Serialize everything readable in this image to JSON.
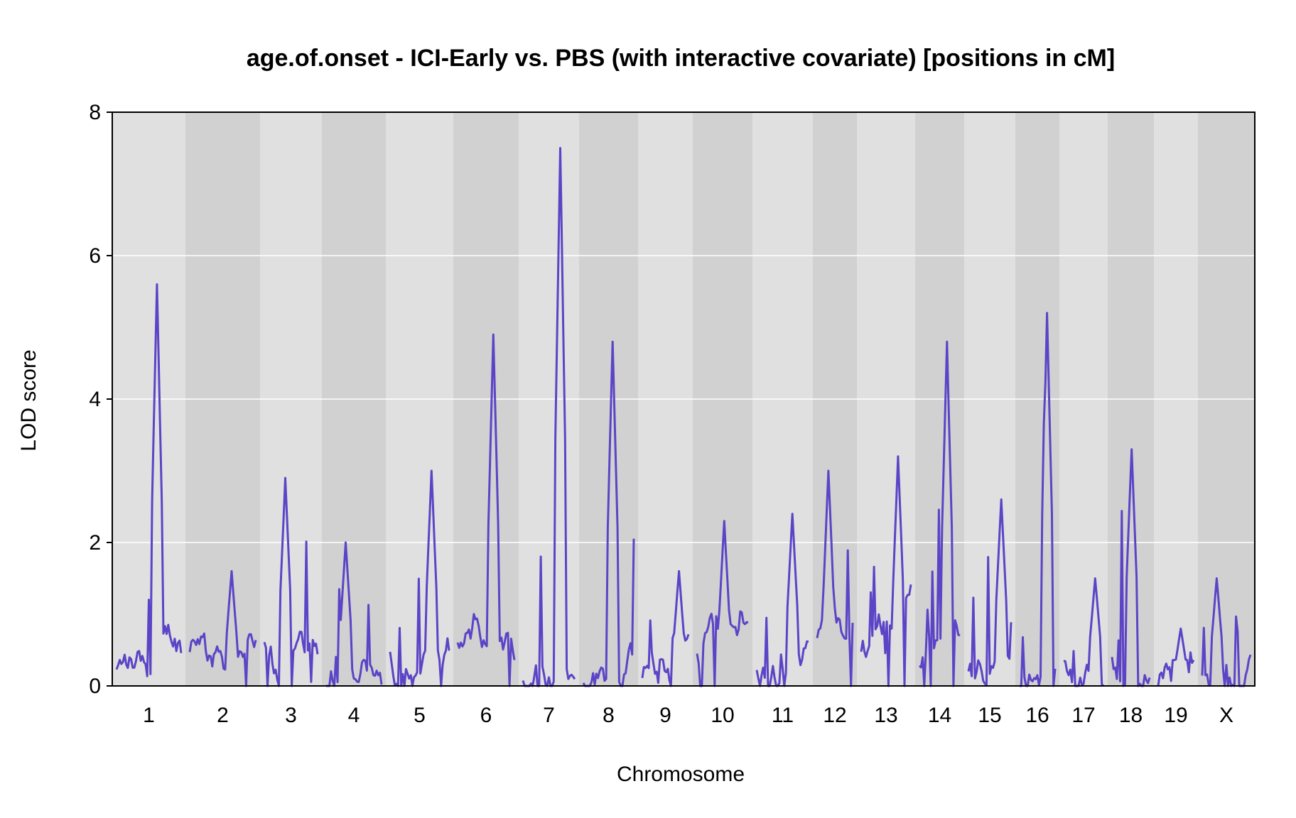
{
  "chart_data": {
    "type": "line",
    "title": "age.of.onset - ICI-Early vs. PBS (with interactive covariate) [positions in cM]",
    "xlabel": "Chromosome",
    "ylabel": "LOD score",
    "ylim": [
      0,
      8
    ],
    "yticks": [
      0,
      2,
      4,
      6,
      8
    ],
    "grid": true,
    "colors": {
      "line": "#5b44c6",
      "band_light": "#e0e0e0",
      "band_dark": "#d1d1d1",
      "gridline": "#ffffff",
      "frame": "#000000"
    },
    "chromosomes": [
      {
        "name": "1",
        "peak": 5.6
      },
      {
        "name": "2",
        "peak": 1.6
      },
      {
        "name": "3",
        "peak": 2.9
      },
      {
        "name": "4",
        "peak": 2.0
      },
      {
        "name": "5",
        "peak": 3.0
      },
      {
        "name": "6",
        "peak": 4.9
      },
      {
        "name": "7",
        "peak": 7.5
      },
      {
        "name": "8",
        "peak": 4.8
      },
      {
        "name": "9",
        "peak": 1.6
      },
      {
        "name": "10",
        "peak": 2.3
      },
      {
        "name": "11",
        "peak": 2.4
      },
      {
        "name": "12",
        "peak": 3.0
      },
      {
        "name": "13",
        "peak": 3.2
      },
      {
        "name": "14",
        "peak": 4.8
      },
      {
        "name": "15",
        "peak": 2.6
      },
      {
        "name": "16",
        "peak": 5.2
      },
      {
        "name": "17",
        "peak": 1.5
      },
      {
        "name": "18",
        "peak": 3.3
      },
      {
        "name": "19",
        "peak": 0.8
      },
      {
        "name": "X",
        "peak": 1.5
      }
    ]
  }
}
